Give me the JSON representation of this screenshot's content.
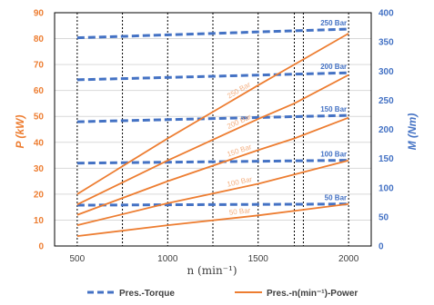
{
  "chart_data": {
    "type": "line",
    "xlabel": "n (min⁻¹)",
    "x_ticks": [
      "500",
      "1000",
      "1500",
      "2000"
    ],
    "vertical_line_positions": [
      500,
      750,
      1000,
      1250,
      1500,
      1700,
      1750,
      2000
    ],
    "left_axis": {
      "label": "P (kW)",
      "range": [
        0,
        90
      ],
      "ticks": [
        "0",
        "10",
        "20",
        "30",
        "40",
        "50",
        "60",
        "70",
        "80",
        "90"
      ]
    },
    "right_axis": {
      "label": "M (Nm)",
      "range": [
        0,
        400
      ],
      "ticks": [
        "0",
        "50",
        "100",
        "150",
        "200",
        "250",
        "300",
        "350",
        "400"
      ]
    },
    "torque_series": [
      {
        "name": "50 Bar",
        "x": [
          500,
          2000
        ],
        "y": [
          70,
          72
        ]
      },
      {
        "name": "100 Bar",
        "x": [
          500,
          2000
        ],
        "y": [
          142,
          147
        ]
      },
      {
        "name": "150 Bar",
        "x": [
          500,
          2000
        ],
        "y": [
          213,
          224
        ]
      },
      {
        "name": "200 Bar",
        "x": [
          500,
          2000
        ],
        "y": [
          285,
          297
        ]
      },
      {
        "name": "250 Bar",
        "x": [
          500,
          2000
        ],
        "y": [
          357,
          372
        ]
      }
    ],
    "power_series": [
      {
        "name": "50 Bar",
        "x": [
          500,
          1000,
          1500,
          2000
        ],
        "y": [
          3.8,
          8,
          11.8,
          16.2
        ]
      },
      {
        "name": "100 Bar",
        "x": [
          500,
          1000,
          1500,
          2000
        ],
        "y": [
          8,
          16.5,
          24,
          33
        ]
      },
      {
        "name": "150 Bar",
        "x": [
          500,
          1000,
          1500,
          1700,
          2000
        ],
        "y": [
          12,
          25,
          37,
          41.5,
          49.5
        ]
      },
      {
        "name": "200 Bar",
        "x": [
          500,
          1000,
          1500,
          1700,
          2000
        ],
        "y": [
          16,
          33,
          49,
          55,
          66
        ]
      },
      {
        "name": "250 Bar",
        "x": [
          500,
          1000,
          1500,
          1700,
          2000
        ],
        "y": [
          20,
          41.5,
          62,
          70,
          82
        ]
      }
    ],
    "legend": {
      "torque": "Pres.-Torque",
      "power": "Pres.-n(min⁻¹)-Power"
    },
    "colors": {
      "torque": "#4472C4",
      "power": "#ED7D31",
      "power_label": "#F4B183"
    },
    "grid": "horizontal",
    "legend_position": "bottom"
  }
}
